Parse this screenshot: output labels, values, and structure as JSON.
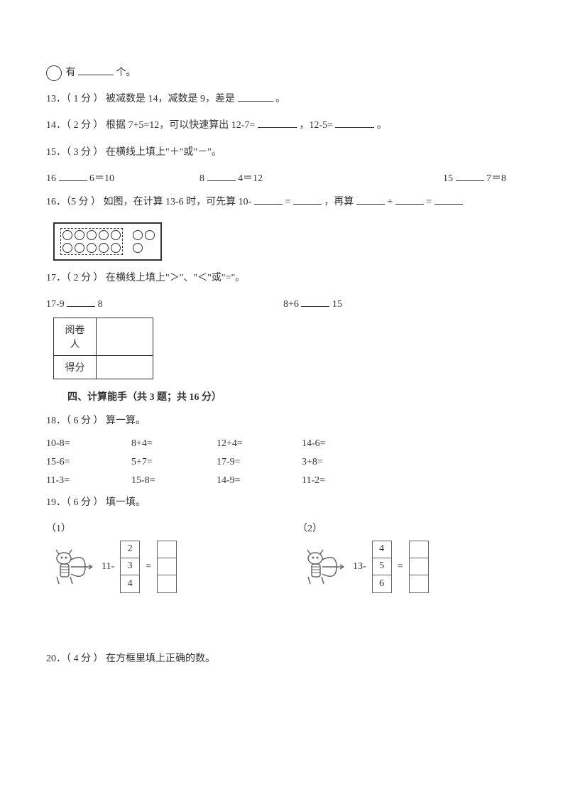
{
  "q12_tail": {
    "text1": "有",
    "text2": "个。"
  },
  "q13": {
    "prefix": "13．（ 1 分 ） 被减数是 14，减数是 9，差是",
    "suffix": "。"
  },
  "q14": {
    "prefix": "14．（ 2 分 ） 根据 7+5=12，可以快速算出 12-7=",
    "mid": "，12-5=",
    "suffix": "。"
  },
  "q15_title": "15．（ 3 分 ） 在横线上填上\"＋\"或\"－\"。",
  "q15_items": [
    {
      "a": "16",
      "b": "6＝10"
    },
    {
      "a": "8",
      "b": "4＝12"
    },
    {
      "a": "15",
      "b": "7＝8"
    }
  ],
  "q16": {
    "prefix": "16．（5 分 ） 如图，在计算 13-6 时，可先算 10- ",
    "mid1": "= ",
    "mid2": "，再算 ",
    "mid3": "+",
    "mid4": "= "
  },
  "q17_title": "17．（ 2 分 ） 在横线上填上\"＞\"、\"＜\"或\"=\"。",
  "q17_items": [
    {
      "a": "17-9",
      "b": "8"
    },
    {
      "a": "8+6",
      "b": "15"
    }
  ],
  "score_table": {
    "row1": "阅卷人",
    "row2": "得分"
  },
  "section4": "四、计算能手（共 3 题；共 16 分）",
  "q18_title": "18．（ 6 分 ） 算一算。",
  "q18_rows": [
    [
      "10-8=",
      "8+4=",
      "12+4=",
      "14-6="
    ],
    [
      "15-6=",
      "5+7=",
      "17-9=",
      "3+8="
    ],
    [
      "11-3=",
      "15-8=",
      "14-9=",
      "11-2="
    ]
  ],
  "q19_title": "19．（ 6 分 ） 填一填。",
  "q19_parts": [
    {
      "label": "（1）",
      "base": "11-",
      "nums": [
        "2",
        "3",
        "4"
      ]
    },
    {
      "label": "（2）",
      "base": "13-",
      "nums": [
        "4",
        "5",
        "6"
      ]
    }
  ],
  "q20": "20．（ 4 分 ） 在方框里填上正确的数。",
  "eq_sign": "="
}
